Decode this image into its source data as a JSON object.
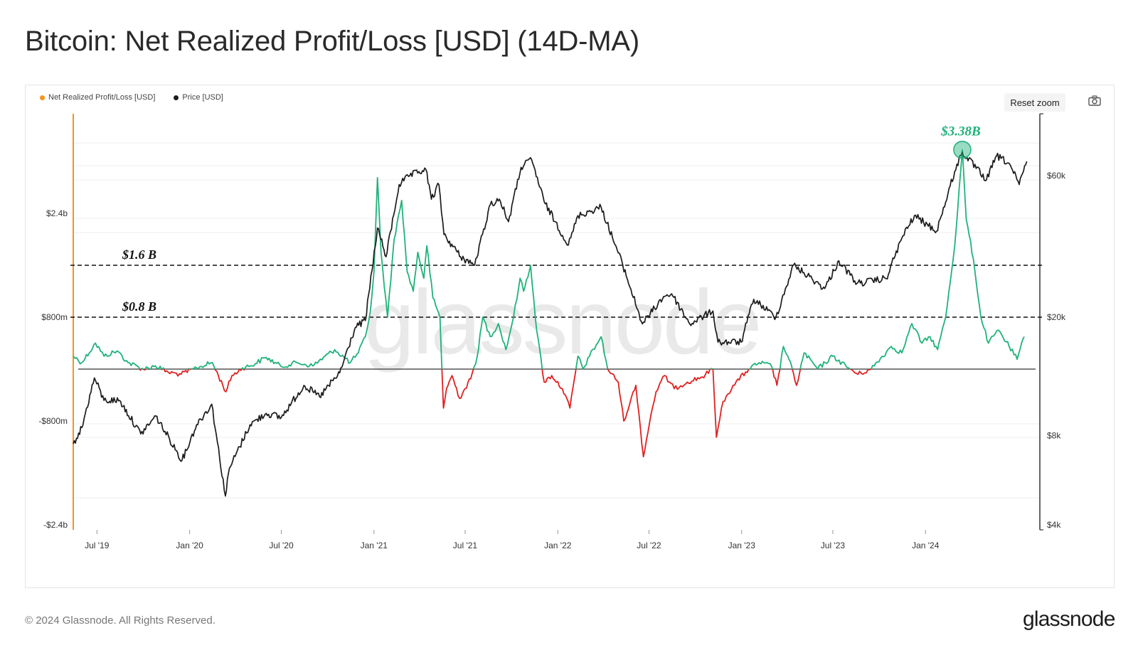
{
  "page": {
    "title": "Bitcoin: Net Realized Profit/Loss [USD] (14D-MA)",
    "copyright": "© 2024 Glassnode. All Rights Reserved.",
    "brand": "glassnode",
    "watermark": "glassnode"
  },
  "toolbar": {
    "reset_zoom_label": "Reset zoom",
    "camera_icon": "camera-icon"
  },
  "colors": {
    "profit": "#1fb27a",
    "loss": "#e02020",
    "price": "#1c1c1c",
    "left_axis_accent": "#f7931a",
    "threshold_line": "#111111"
  },
  "chart_data": {
    "type": "line",
    "title": "Bitcoin: Net Realized Profit/Loss [USD] (14D-MA)",
    "legend": [
      {
        "name": "Net Realized Profit/Loss [USD]",
        "color": "#f7931a"
      },
      {
        "name": "Price [USD]",
        "color": "#1c1c1c"
      }
    ],
    "legend_position": "top-left",
    "x_ticks": [
      "Jul '19",
      "Jan '20",
      "Jul '20",
      "Jan '21",
      "Jul '21",
      "Jan '22",
      "Jul '22",
      "Jan '23",
      "Jul '23",
      "Jan '24"
    ],
    "x_range": [
      "2019-05-15",
      "2024-08-15"
    ],
    "y_left": {
      "ticks": [
        "$2.4b",
        "$800m",
        "-$800m",
        "-$2.4b"
      ],
      "tick_values": [
        2400000000,
        800000000,
        -800000000,
        -2400000000
      ],
      "range": [
        -2400000000,
        3800000000
      ]
    },
    "y_right": {
      "ticks": [
        "$60k",
        "$20k",
        "$8k",
        "$4k"
      ],
      "tick_values": [
        60000,
        20000,
        8000,
        4000
      ],
      "scale": "log",
      "range": [
        4000,
        100000
      ]
    },
    "annotations": [
      {
        "label": "$1.6 B",
        "value": 1600000000,
        "style": "dashed"
      },
      {
        "label": "$0.8 B",
        "value": 800000000,
        "style": "dashed"
      },
      {
        "label": "$3.38B",
        "date": "2024-03-14",
        "value": 3380000000,
        "color": "#1fb27a"
      }
    ],
    "series": [
      {
        "name": "Net Realized Profit/Loss [USD]",
        "axis": "left",
        "unit": "USD",
        "points": [
          [
            "2019-05-15",
            200000000
          ],
          [
            "2019-06-01",
            100000000
          ],
          [
            "2019-06-28",
            400000000
          ],
          [
            "2019-07-15",
            200000000
          ],
          [
            "2019-08-10",
            280000000
          ],
          [
            "2019-09-01",
            100000000
          ],
          [
            "2019-10-01",
            0
          ],
          [
            "2019-10-25",
            50000000
          ],
          [
            "2019-11-20",
            -50000000
          ],
          [
            "2019-12-15",
            -80000000
          ],
          [
            "2020-01-15",
            20000000
          ],
          [
            "2020-02-15",
            100000000
          ],
          [
            "2020-03-13",
            -350000000
          ],
          [
            "2020-03-25",
            -100000000
          ],
          [
            "2020-04-15",
            20000000
          ],
          [
            "2020-05-01",
            50000000
          ],
          [
            "2020-06-01",
            180000000
          ],
          [
            "2020-07-01",
            40000000
          ],
          [
            "2020-08-01",
            100000000
          ],
          [
            "2020-09-01",
            50000000
          ],
          [
            "2020-10-15",
            300000000
          ],
          [
            "2020-11-15",
            100000000
          ],
          [
            "2020-12-01",
            250000000
          ],
          [
            "2020-12-15",
            500000000
          ],
          [
            "2020-12-25",
            900000000
          ],
          [
            "2021-01-01",
            1500000000
          ],
          [
            "2021-01-08",
            2950000000
          ],
          [
            "2021-01-15",
            1800000000
          ],
          [
            "2021-01-28",
            800000000
          ],
          [
            "2021-02-10",
            2000000000
          ],
          [
            "2021-02-25",
            2600000000
          ],
          [
            "2021-03-08",
            1500000000
          ],
          [
            "2021-03-20",
            1200000000
          ],
          [
            "2021-03-29",
            1800000000
          ],
          [
            "2021-04-10",
            1400000000
          ],
          [
            "2021-04-16",
            1900000000
          ],
          [
            "2021-04-28",
            1100000000
          ],
          [
            "2021-05-12",
            800000000
          ],
          [
            "2021-05-19",
            -600000000
          ],
          [
            "2021-05-25",
            -300000000
          ],
          [
            "2021-06-05",
            -100000000
          ],
          [
            "2021-06-20",
            -450000000
          ],
          [
            "2021-07-01",
            -300000000
          ],
          [
            "2021-07-12",
            -150000000
          ],
          [
            "2021-07-25",
            200000000
          ],
          [
            "2021-08-05",
            800000000
          ],
          [
            "2021-08-20",
            500000000
          ],
          [
            "2021-09-05",
            700000000
          ],
          [
            "2021-09-20",
            300000000
          ],
          [
            "2021-10-05",
            800000000
          ],
          [
            "2021-10-18",
            1400000000
          ],
          [
            "2021-10-25",
            1200000000
          ],
          [
            "2021-11-08",
            1600000000
          ],
          [
            "2021-11-20",
            600000000
          ],
          [
            "2021-12-05",
            -200000000
          ],
          [
            "2021-12-20",
            -100000000
          ],
          [
            "2022-01-10",
            -300000000
          ],
          [
            "2022-01-25",
            -600000000
          ],
          [
            "2022-02-10",
            200000000
          ],
          [
            "2022-02-20",
            0
          ],
          [
            "2022-03-05",
            200000000
          ],
          [
            "2022-03-28",
            500000000
          ],
          [
            "2022-04-10",
            0
          ],
          [
            "2022-05-01",
            -200000000
          ],
          [
            "2022-05-12",
            -800000000
          ],
          [
            "2022-05-25",
            -500000000
          ],
          [
            "2022-06-05",
            -250000000
          ],
          [
            "2022-06-20",
            -1350000000
          ],
          [
            "2022-07-05",
            -700000000
          ],
          [
            "2022-07-15",
            -350000000
          ],
          [
            "2022-08-01",
            -100000000
          ],
          [
            "2022-08-20",
            -300000000
          ],
          [
            "2022-09-15",
            -200000000
          ],
          [
            "2022-10-15",
            -120000000
          ],
          [
            "2022-11-05",
            0
          ],
          [
            "2022-11-12",
            -1050000000
          ],
          [
            "2022-11-25",
            -500000000
          ],
          [
            "2022-12-15",
            -250000000
          ],
          [
            "2023-01-15",
            0
          ],
          [
            "2023-02-05",
            100000000
          ],
          [
            "2023-03-01",
            50000000
          ],
          [
            "2023-03-12",
            -250000000
          ],
          [
            "2023-03-25",
            350000000
          ],
          [
            "2023-04-05",
            150000000
          ],
          [
            "2023-04-20",
            -250000000
          ],
          [
            "2023-05-05",
            250000000
          ],
          [
            "2023-06-01",
            0
          ],
          [
            "2023-07-01",
            200000000
          ],
          [
            "2023-08-01",
            20000000
          ],
          [
            "2023-08-20",
            -80000000
          ],
          [
            "2023-09-15",
            0
          ],
          [
            "2023-10-25",
            350000000
          ],
          [
            "2023-11-15",
            250000000
          ],
          [
            "2023-12-05",
            700000000
          ],
          [
            "2023-12-25",
            400000000
          ],
          [
            "2024-01-10",
            500000000
          ],
          [
            "2024-01-25",
            300000000
          ],
          [
            "2024-02-10",
            800000000
          ],
          [
            "2024-02-28",
            1900000000
          ],
          [
            "2024-03-14",
            3380000000
          ],
          [
            "2024-03-22",
            2300000000
          ],
          [
            "2024-04-05",
            1700000000
          ],
          [
            "2024-04-20",
            800000000
          ],
          [
            "2024-05-05",
            400000000
          ],
          [
            "2024-05-25",
            600000000
          ],
          [
            "2024-06-15",
            350000000
          ],
          [
            "2024-07-01",
            150000000
          ],
          [
            "2024-07-15",
            500000000
          ]
        ]
      },
      {
        "name": "Price [USD]",
        "axis": "right",
        "unit": "USD",
        "points": [
          [
            "2019-05-15",
            7500
          ],
          [
            "2019-06-01",
            8500
          ],
          [
            "2019-06-26",
            12500
          ],
          [
            "2019-07-15",
            10500
          ],
          [
            "2019-08-15",
            10500
          ],
          [
            "2019-09-26",
            8100
          ],
          [
            "2019-10-26",
            9300
          ],
          [
            "2019-12-17",
            6600
          ],
          [
            "2020-01-15",
            8700
          ],
          [
            "2020-02-14",
            10200
          ],
          [
            "2020-03-12",
            5000
          ],
          [
            "2020-03-20",
            6200
          ],
          [
            "2020-04-30",
            8700
          ],
          [
            "2020-06-01",
            9500
          ],
          [
            "2020-07-01",
            9200
          ],
          [
            "2020-08-15",
            11800
          ],
          [
            "2020-09-15",
            10800
          ],
          [
            "2020-10-25",
            13000
          ],
          [
            "2020-11-25",
            18500
          ],
          [
            "2020-12-15",
            19500
          ],
          [
            "2021-01-08",
            40000
          ],
          [
            "2021-01-25",
            32000
          ],
          [
            "2021-02-20",
            56000
          ],
          [
            "2021-03-13",
            60000
          ],
          [
            "2021-04-14",
            63000
          ],
          [
            "2021-04-25",
            50000
          ],
          [
            "2021-05-10",
            56000
          ],
          [
            "2021-05-20",
            38000
          ],
          [
            "2021-06-22",
            32000
          ],
          [
            "2021-07-20",
            30000
          ],
          [
            "2021-08-20",
            48000
          ],
          [
            "2021-09-07",
            50000
          ],
          [
            "2021-09-25",
            42000
          ],
          [
            "2021-10-20",
            64000
          ],
          [
            "2021-11-10",
            68000
          ],
          [
            "2021-12-05",
            49000
          ],
          [
            "2022-01-22",
            35000
          ],
          [
            "2022-02-10",
            44000
          ],
          [
            "2022-03-28",
            47000
          ],
          [
            "2022-05-10",
            30000
          ],
          [
            "2022-06-18",
            19000
          ],
          [
            "2022-07-30",
            23500
          ],
          [
            "2022-08-15",
            24000
          ],
          [
            "2022-09-20",
            19000
          ],
          [
            "2022-11-05",
            21000
          ],
          [
            "2022-11-15",
            16500
          ],
          [
            "2022-12-31",
            16500
          ],
          [
            "2023-01-25",
            23000
          ],
          [
            "2023-03-10",
            20000
          ],
          [
            "2023-04-14",
            30000
          ],
          [
            "2023-06-15",
            25000
          ],
          [
            "2023-07-13",
            31000
          ],
          [
            "2023-08-18",
            26000
          ],
          [
            "2023-10-15",
            27000
          ],
          [
            "2023-11-15",
            37000
          ],
          [
            "2023-12-10",
            44000
          ],
          [
            "2024-01-23",
            39000
          ],
          [
            "2024-02-28",
            62000
          ],
          [
            "2024-03-14",
            72000
          ],
          [
            "2024-05-01",
            58000
          ],
          [
            "2024-05-21",
            70000
          ],
          [
            "2024-06-15",
            66000
          ],
          [
            "2024-07-05",
            56000
          ],
          [
            "2024-07-20",
            67000
          ]
        ]
      }
    ]
  }
}
